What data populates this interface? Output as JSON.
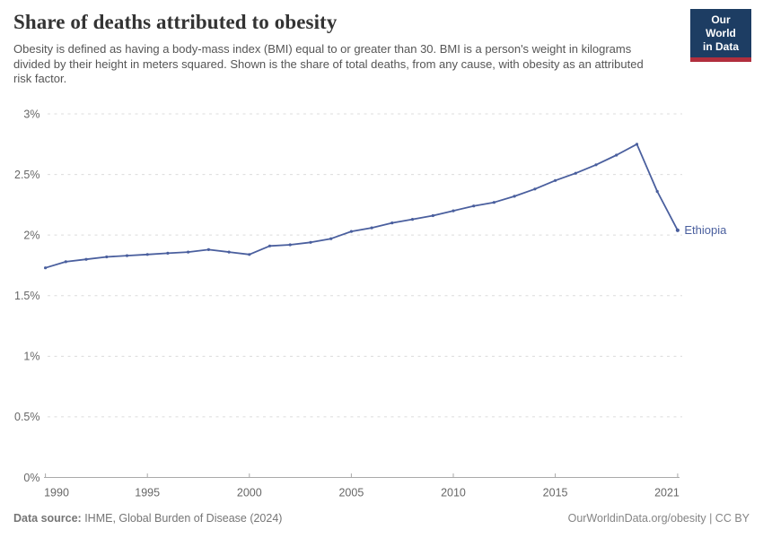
{
  "header": {
    "title": "Share of deaths attributed to obesity",
    "subtitle": "Obesity is defined as having a body-mass index (BMI) equal to or greater than 30. BMI is a person's weight in kilograms divided by their height in meters squared. Shown is the share of total deaths, from any cause, with obesity as an attributed risk factor.",
    "logo_line1": "Our World",
    "logo_line2": "in Data"
  },
  "footer": {
    "source_label": "Data source:",
    "source_text": " IHME, Global Burden of Disease (2024)",
    "credit": "OurWorldinData.org/obesity | CC BY"
  },
  "colors": {
    "line": "#4a5f9e",
    "grid": "#dcdcdc",
    "axis": "#a9a9a9",
    "tick_text": "#676767",
    "logo_navy": "#1d3d63",
    "logo_red": "#b12f3d"
  },
  "chart_data": {
    "type": "line",
    "title": "Share of deaths attributed to obesity",
    "xlabel": "",
    "ylabel": "",
    "xlim": [
      1990,
      2021
    ],
    "ylim": [
      0,
      3
    ],
    "grid": true,
    "legend_position": "end-of-line",
    "x_ticks": [
      1990,
      1995,
      2000,
      2005,
      2010,
      2015,
      2021
    ],
    "y_ticks": [
      0,
      0.5,
      1,
      1.5,
      2,
      2.5,
      3
    ],
    "y_tick_labels": [
      "0%",
      "0.5%",
      "1%",
      "1.5%",
      "2%",
      "2.5%",
      "3%"
    ],
    "x": [
      1990,
      1991,
      1992,
      1993,
      1994,
      1995,
      1996,
      1997,
      1998,
      1999,
      2000,
      2001,
      2002,
      2003,
      2004,
      2005,
      2006,
      2007,
      2008,
      2009,
      2010,
      2011,
      2012,
      2013,
      2014,
      2015,
      2016,
      2017,
      2018,
      2019,
      2020,
      2021
    ],
    "series": [
      {
        "name": "Ethiopia",
        "unit": "%",
        "values": [
          1.73,
          1.78,
          1.8,
          1.82,
          1.83,
          1.84,
          1.85,
          1.86,
          1.88,
          1.86,
          1.84,
          1.91,
          1.92,
          1.94,
          1.97,
          2.03,
          2.06,
          2.1,
          2.13,
          2.16,
          2.2,
          2.24,
          2.27,
          2.32,
          2.38,
          2.45,
          2.51,
          2.58,
          2.66,
          2.75,
          2.36,
          2.04
        ]
      }
    ]
  }
}
